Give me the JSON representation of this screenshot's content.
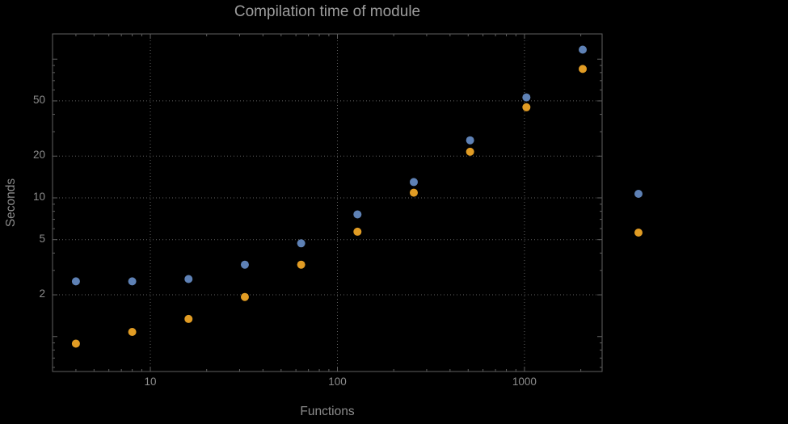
{
  "colors": {
    "background": "#000000",
    "frame": "#5f5f5f",
    "grid": "#6e6e6e",
    "tick_text": "#8c8c8c",
    "label_text": "#8c8c8c",
    "title_text": "#9d9d9d"
  },
  "chart_data": {
    "type": "scatter",
    "scale": "log-log",
    "title": "Compilation time of module",
    "xlabel": "Functions",
    "ylabel": "Seconds",
    "xlim": [
      3.0,
      2600
    ],
    "ylim": [
      0.56,
      152
    ],
    "x_ticks": [
      10,
      100,
      1000
    ],
    "y_ticks": [
      2,
      5,
      10,
      20,
      50
    ],
    "grid": "dotted",
    "legend": {
      "position": "outside-right",
      "labels_visible": false
    },
    "x": [
      4,
      8,
      16,
      32,
      64,
      128,
      256,
      512,
      1024,
      2048
    ],
    "series": [
      {
        "name": "series-blue",
        "color": "#5e81b5",
        "values": [
          2.5,
          2.5,
          2.6,
          3.3,
          4.7,
          7.6,
          13,
          26,
          53,
          117
        ]
      },
      {
        "name": "series-orange",
        "color": "#e19c24",
        "values": [
          0.89,
          1.08,
          1.34,
          1.93,
          3.3,
          5.7,
          10.9,
          21.5,
          45,
          85
        ]
      }
    ]
  }
}
